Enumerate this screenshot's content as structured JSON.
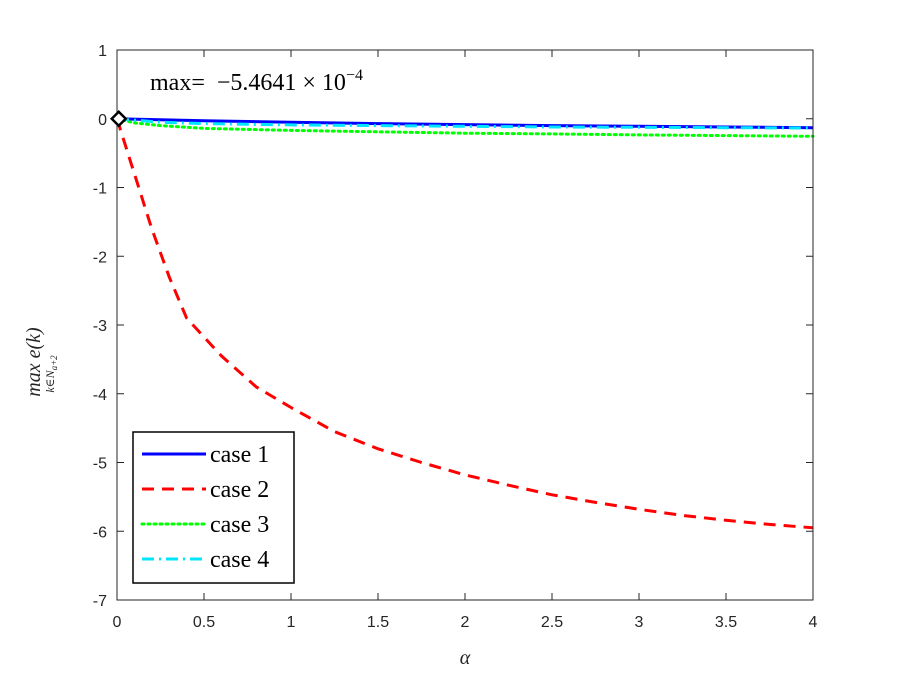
{
  "chart_data": {
    "type": "line",
    "xlabel": "α",
    "ylabel": "max e(k)",
    "ylabel_sub": "k∈N",
    "ylabel_subsub": "a+2",
    "xlim": [
      0,
      4
    ],
    "ylim": [
      -7,
      1
    ],
    "xticks": [
      "0",
      "0.5",
      "1",
      "1.5",
      "2",
      "2.5",
      "3",
      "3.5",
      "4"
    ],
    "xtick_values": [
      0,
      0.5,
      1,
      1.5,
      2,
      2.5,
      3,
      3.5,
      4
    ],
    "yticks": [
      "1",
      "0",
      "-1",
      "-2",
      "-3",
      "-4",
      "-5",
      "-6",
      "-7"
    ],
    "ytick_values": [
      1,
      0,
      -1,
      -2,
      -3,
      -4,
      -5,
      -6,
      -7
    ],
    "grid": false,
    "legend_position": "bottom-left",
    "annotation": {
      "prefix": "max=",
      "mantissa": "−5.4641 × 10",
      "exponent": "−4"
    },
    "marker": {
      "shape": "diamond",
      "x": 0.01,
      "y": -0.00054641,
      "color": "#000000"
    },
    "series": [
      {
        "name": "case 1",
        "color": "#0000ff",
        "dash": "solid",
        "x": [
          0,
          0.5,
          1,
          1.5,
          2,
          2.5,
          3,
          3.5,
          4
        ],
        "y": [
          0,
          -0.03,
          -0.05,
          -0.07,
          -0.085,
          -0.1,
          -0.11,
          -0.12,
          -0.13
        ]
      },
      {
        "name": "case 2",
        "color": "#ff0000",
        "dash": "dashed",
        "x": [
          0,
          0.1,
          0.2,
          0.3,
          0.4,
          0.6,
          0.8,
          1.0,
          1.25,
          1.5,
          1.75,
          2.0,
          2.25,
          2.5,
          2.75,
          3.0,
          3.25,
          3.5,
          3.75,
          4.0
        ],
        "y": [
          0,
          -0.8,
          -1.6,
          -2.3,
          -2.9,
          -3.45,
          -3.9,
          -4.2,
          -4.55,
          -4.8,
          -5.0,
          -5.18,
          -5.33,
          -5.47,
          -5.58,
          -5.68,
          -5.77,
          -5.84,
          -5.9,
          -5.95
        ]
      },
      {
        "name": "case 3",
        "color": "#00ff00",
        "dash": "dotted",
        "x": [
          0,
          0.1,
          0.25,
          0.5,
          1,
          1.5,
          2,
          2.5,
          3,
          3.5,
          4
        ],
        "y": [
          0,
          -0.06,
          -0.1,
          -0.14,
          -0.17,
          -0.19,
          -0.21,
          -0.22,
          -0.235,
          -0.245,
          -0.255
        ]
      },
      {
        "name": "case 4",
        "color": "#00e5ff",
        "dash": "dashdot",
        "x": [
          0,
          0.25,
          0.5,
          1,
          1.5,
          2,
          2.5,
          3,
          3.5,
          4
        ],
        "y": [
          0,
          -0.05,
          -0.07,
          -0.09,
          -0.1,
          -0.11,
          -0.12,
          -0.125,
          -0.13,
          -0.135
        ]
      }
    ]
  }
}
